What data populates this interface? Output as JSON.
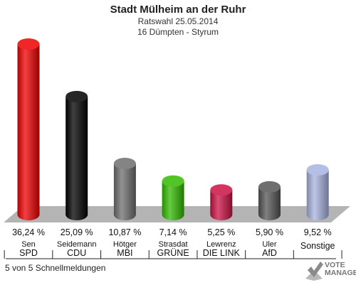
{
  "header": {
    "title": "Stadt Mülheim an der Ruhr",
    "subtitle_line1": "Ratswahl 25.05.2014",
    "subtitle_line2": "16 Dümpten - Styrum"
  },
  "footer": {
    "note": "5 von 5 Schnellmeldungen"
  },
  "logo": {
    "line1": "VOTE",
    "line2": "MANAGER"
  },
  "chart_data": {
    "type": "bar",
    "title": "Stadt Mülheim an der Ruhr",
    "subtitle": "Ratswahl 25.05.2014 / 16 Dümpten - Styrum",
    "unit": "%",
    "ylim": [
      0,
      36.24
    ],
    "grid": false,
    "categories": [
      "SPD",
      "CDU",
      "MBI",
      "GRÜNE",
      "DIE LINKE",
      "AfD",
      "Sonstige"
    ],
    "candidates": [
      "Sen",
      "Seidemann",
      "Hötger",
      "Strasdat",
      "Lewrenz",
      "Uler",
      ""
    ],
    "values": [
      36.24,
      25.09,
      10.87,
      7.14,
      5.25,
      5.9,
      9.52
    ],
    "value_labels": [
      "36,24 %",
      "25,09 %",
      "10,87 %",
      "7,14 %",
      "5,25 %",
      "5,90 %",
      "9,52 %"
    ],
    "party_labels": [
      "SPD",
      "CDU",
      "MBI",
      "GRÜNE",
      "DIE LINK",
      "AfD",
      "Sonstige"
    ],
    "colors": [
      "#ee0000",
      "#000000",
      "#6e6e6e",
      "#33bb00",
      "#cc1144",
      "#555555",
      "#a8b4e0"
    ]
  }
}
